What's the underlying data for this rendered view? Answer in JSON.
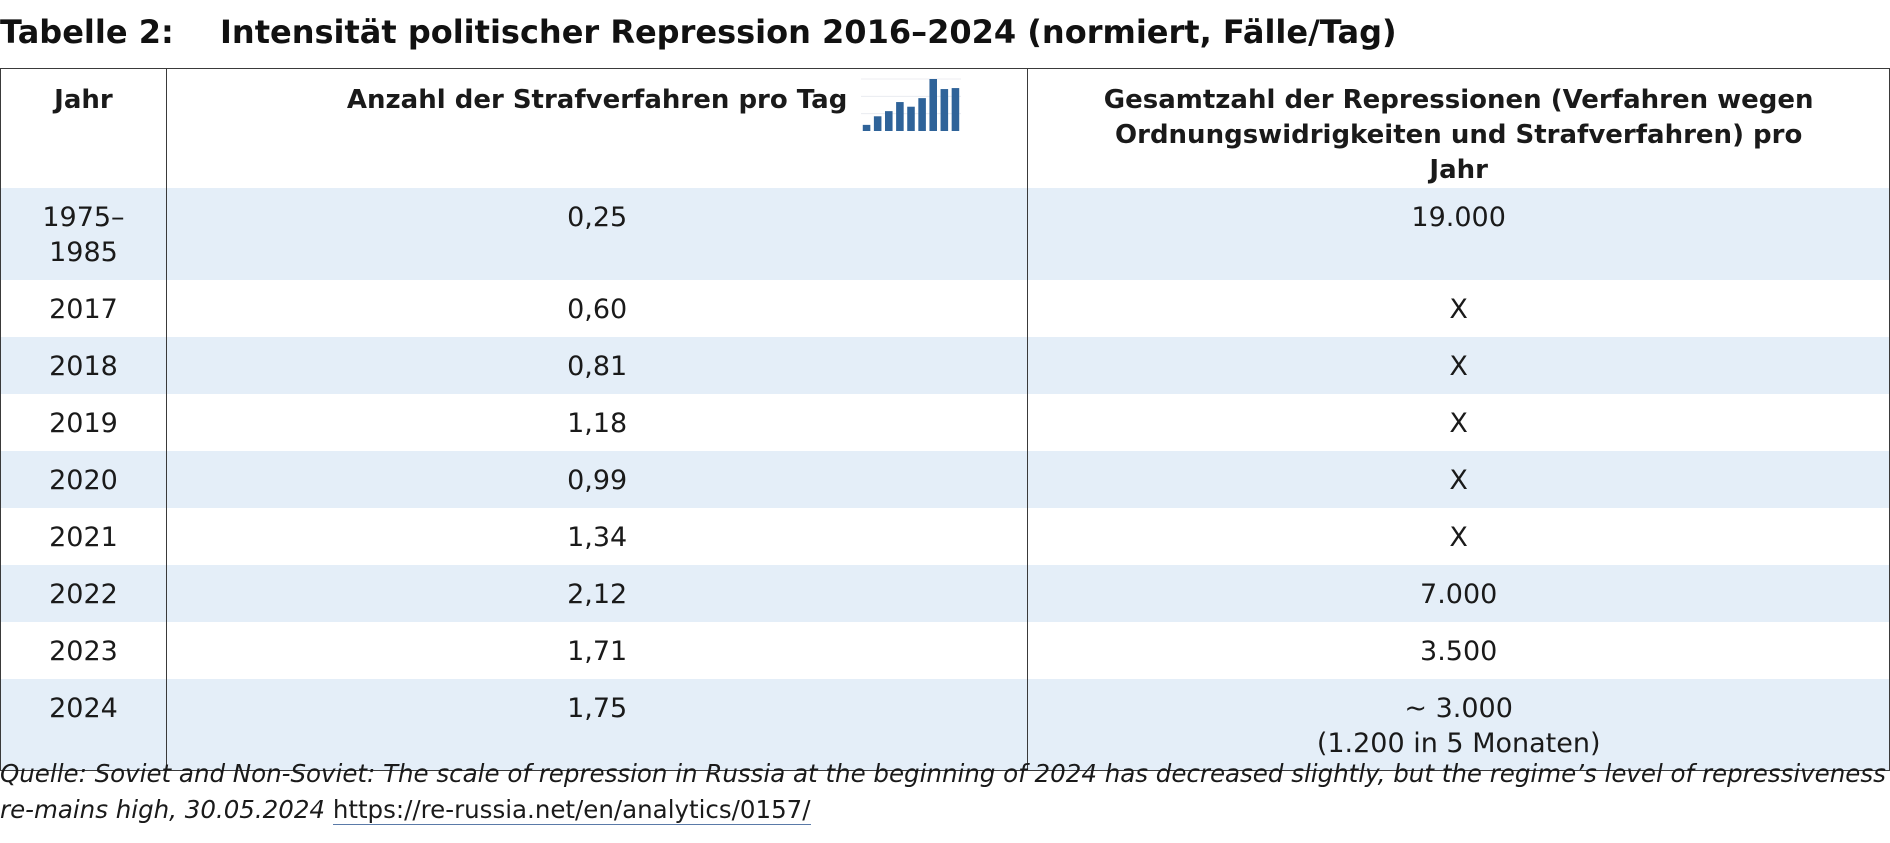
{
  "title": {
    "label": "Tabelle 2:",
    "text": "Intensität politischer Repression 2016–2024 (normiert, Fälle/Tag)"
  },
  "table": {
    "headers": {
      "year": "Jahr",
      "cases_per_day": "Anzahl der Strafverfahren pro Tag",
      "total": "Gesamtzahl der Repressionen (Verfahren wegen Ordnungswidrigkeiten und Strafverfahren) pro Jahr"
    },
    "rows": [
      {
        "year_line1": "1975–",
        "year_line2": "1985",
        "cases": "0,25",
        "total_line1": "19.000",
        "total_line2": ""
      },
      {
        "year_line1": "2017",
        "year_line2": "",
        "cases": "0,60",
        "total_line1": "X",
        "total_line2": ""
      },
      {
        "year_line1": "2018",
        "year_line2": "",
        "cases": "0,81",
        "total_line1": "X",
        "total_line2": ""
      },
      {
        "year_line1": "2019",
        "year_line2": "",
        "cases": "1,18",
        "total_line1": "X",
        "total_line2": ""
      },
      {
        "year_line1": "2020",
        "year_line2": "",
        "cases": "0,99",
        "total_line1": "X",
        "total_line2": ""
      },
      {
        "year_line1": "2021",
        "year_line2": "",
        "cases": "1,34",
        "total_line1": "X",
        "total_line2": ""
      },
      {
        "year_line1": "2022",
        "year_line2": "",
        "cases": "2,12",
        "total_line1": "7.000",
        "total_line2": ""
      },
      {
        "year_line1": "2023",
        "year_line2": "",
        "cases": "1,71",
        "total_line1": "3.500",
        "total_line2": ""
      },
      {
        "year_line1": "2024",
        "year_line2": "",
        "cases": "1,75",
        "total_line1": "~ 3.000",
        "total_line2": "(1.200 in 5 Monaten)"
      }
    ]
  },
  "chart_data": {
    "type": "bar",
    "values": [
      0.25,
      0.6,
      0.81,
      1.18,
      0.99,
      1.34,
      2.12,
      1.71,
      1.75
    ],
    "ylim": [
      0,
      2.12
    ],
    "color": "#2f6399",
    "grid": true
  },
  "source": {
    "text": "Quelle: Soviet and Non-Soviet: The scale of repression in Russia at the beginning of 2024 has decreased slightly, but the regime’s level of repressiveness re-mains high, 30.05.2024 ",
    "link": "https://re-russia.net/en/analytics/0157/"
  }
}
